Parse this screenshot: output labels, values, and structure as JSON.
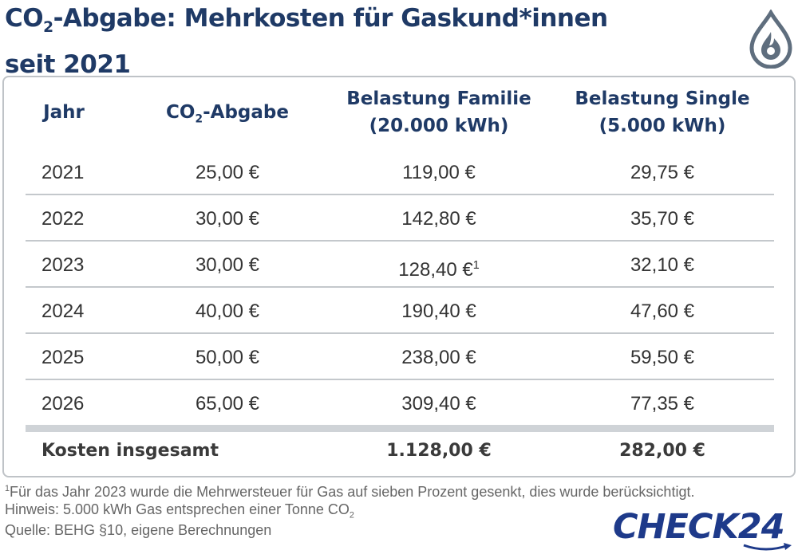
{
  "title": {
    "line1_pre": "CO",
    "line1_sub": "2",
    "line1_post": "-Abgabe: Mehrkosten für Gaskund*innen",
    "line2": "seit 2021"
  },
  "icon": "gas-flame-drop-icon",
  "colors": {
    "title": "#1f3a66",
    "logo": "#1e3a8a",
    "divider": "#c4c8cc"
  },
  "table": {
    "headers": {
      "jahr": "Jahr",
      "abgabe_pre": "CO",
      "abgabe_sub": "2",
      "abgabe_post": "-Abgabe",
      "familie_l1": "Belastung Familie",
      "familie_l2": "(20.000 kWh)",
      "single_l1": "Belastung Single",
      "single_l2": "(5.000 kWh)"
    },
    "rows": [
      {
        "jahr": "2021",
        "abgabe": "25,00 €",
        "familie": "119,00 €",
        "single": "29,75 €"
      },
      {
        "jahr": "2022",
        "abgabe": "30,00 €",
        "familie": "142,80 €",
        "single": "35,70 €"
      },
      {
        "jahr": "2023",
        "abgabe": "30,00 €",
        "familie": "128,40 €",
        "familie_note": "1",
        "single": "32,10 €"
      },
      {
        "jahr": "2024",
        "abgabe": "40,00 €",
        "familie": "190,40 €",
        "single": "47,60 €"
      },
      {
        "jahr": "2025",
        "abgabe": "50,00 €",
        "familie": "238,00 €",
        "single": "59,50 €"
      },
      {
        "jahr": "2026",
        "abgabe": "65,00 €",
        "familie": "309,40 €",
        "single": "77,35 €"
      }
    ],
    "total": {
      "label": "Kosten insgesamt",
      "familie": "1.128,00 €",
      "single": "282,00 €"
    }
  },
  "footnotes": {
    "note1_mark": "1",
    "note1": "Für das Jahr 2023 wurde die Mehrwersteuer für Gas auf sieben Prozent gesenkt, dies wurde berücksichtigt.",
    "hinweis": "Hinweis: 5.000 kWh Gas entsprechen einer Tonne CO",
    "hinweis_sub": "2",
    "quelle": "Quelle: BEHG §10, eigene Berechnungen"
  },
  "logo": "CHECK24",
  "chart_data": {
    "type": "table",
    "columns": [
      "Jahr",
      "CO2-Abgabe",
      "Belastung Familie (20.000 kWh)",
      "Belastung Single (5.000 kWh)"
    ],
    "rows": [
      [
        "2021",
        25.0,
        119.0,
        29.75
      ],
      [
        "2022",
        30.0,
        142.8,
        35.7
      ],
      [
        "2023",
        30.0,
        128.4,
        32.1
      ],
      [
        "2024",
        40.0,
        190.4,
        47.6
      ],
      [
        "2025",
        50.0,
        238.0,
        59.5
      ],
      [
        "2026",
        65.0,
        309.4,
        77.35
      ]
    ],
    "totals": {
      "Belastung Familie (20.000 kWh)": 1128.0,
      "Belastung Single (5.000 kWh)": 282.0
    }
  }
}
